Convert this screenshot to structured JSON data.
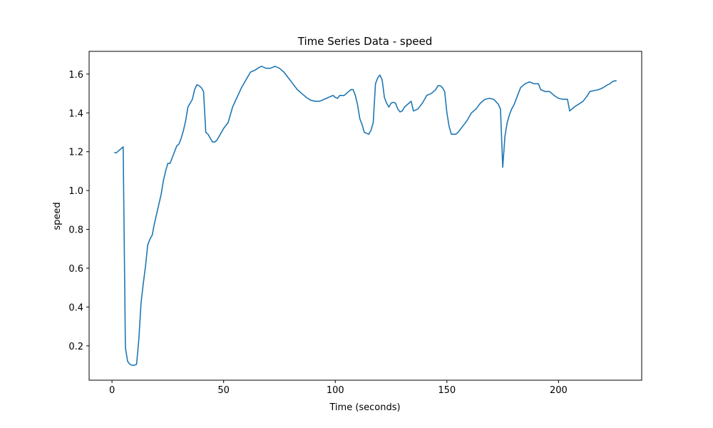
{
  "chart_data": {
    "type": "line",
    "title": "Time Series Data - speed",
    "x_label": "Time (seconds)",
    "y_label": "speed",
    "color": "#1f77b4",
    "x": [
      1,
      2,
      5,
      6,
      7,
      8,
      9,
      10,
      11,
      12,
      13,
      14,
      15,
      16,
      17,
      18,
      19,
      20,
      21,
      22,
      23,
      24,
      25,
      26,
      27,
      28,
      29,
      30,
      31,
      32,
      33,
      34,
      35,
      36,
      37,
      38,
      39,
      40,
      41,
      42,
      43,
      44,
      45,
      46,
      47,
      48,
      49,
      50,
      52,
      53,
      54,
      56,
      58,
      60,
      62,
      64,
      66,
      67,
      69,
      71,
      73,
      75,
      77,
      79,
      81,
      83,
      85,
      87,
      89,
      91,
      93,
      95,
      97,
      99,
      100,
      101,
      102,
      104,
      106,
      107,
      108,
      109,
      110,
      111,
      112,
      113,
      115,
      116,
      117,
      118,
      119,
      120,
      121,
      122,
      123,
      124,
      125,
      126,
      127,
      128,
      129,
      130,
      131,
      133,
      134,
      135,
      136,
      137,
      139,
      141,
      143,
      145,
      146,
      147,
      148,
      149,
      150,
      151,
      152,
      154,
      155,
      157,
      159,
      161,
      163,
      165,
      167,
      169,
      171,
      173,
      174,
      175,
      176,
      177,
      178,
      179,
      180,
      181,
      182,
      183,
      185,
      187,
      189,
      191,
      192,
      194,
      196,
      198,
      200,
      202,
      204,
      205,
      207,
      209,
      211,
      213,
      214,
      216,
      218,
      220,
      222,
      223,
      224,
      225,
      226
    ],
    "values": [
      1.195,
      1.195,
      1.225,
      0.19,
      0.12,
      0.105,
      0.1,
      0.1,
      0.105,
      0.23,
      0.42,
      0.52,
      0.61,
      0.72,
      0.75,
      0.77,
      0.83,
      0.88,
      0.93,
      0.98,
      1.05,
      1.1,
      1.14,
      1.14,
      1.17,
      1.2,
      1.23,
      1.24,
      1.27,
      1.31,
      1.36,
      1.43,
      1.45,
      1.47,
      1.52,
      1.545,
      1.54,
      1.53,
      1.51,
      1.3,
      1.29,
      1.27,
      1.25,
      1.25,
      1.26,
      1.28,
      1.3,
      1.32,
      1.35,
      1.39,
      1.43,
      1.48,
      1.53,
      1.57,
      1.61,
      1.62,
      1.635,
      1.64,
      1.63,
      1.63,
      1.64,
      1.63,
      1.61,
      1.58,
      1.55,
      1.52,
      1.5,
      1.48,
      1.465,
      1.46,
      1.46,
      1.47,
      1.48,
      1.49,
      1.48,
      1.475,
      1.49,
      1.49,
      1.51,
      1.52,
      1.52,
      1.49,
      1.44,
      1.37,
      1.34,
      1.3,
      1.29,
      1.31,
      1.35,
      1.55,
      1.58,
      1.595,
      1.57,
      1.48,
      1.45,
      1.43,
      1.45,
      1.455,
      1.45,
      1.42,
      1.405,
      1.41,
      1.43,
      1.45,
      1.46,
      1.41,
      1.415,
      1.42,
      1.45,
      1.49,
      1.5,
      1.52,
      1.54,
      1.54,
      1.53,
      1.51,
      1.4,
      1.33,
      1.29,
      1.29,
      1.3,
      1.33,
      1.36,
      1.4,
      1.42,
      1.45,
      1.47,
      1.475,
      1.47,
      1.445,
      1.42,
      1.12,
      1.28,
      1.35,
      1.39,
      1.42,
      1.44,
      1.47,
      1.5,
      1.53,
      1.55,
      1.56,
      1.55,
      1.55,
      1.52,
      1.51,
      1.51,
      1.49,
      1.475,
      1.47,
      1.47,
      1.41,
      1.43,
      1.445,
      1.46,
      1.49,
      1.51,
      1.515,
      1.52,
      1.53,
      1.545,
      1.55,
      1.56,
      1.565,
      1.565
    ],
    "xlim": [
      -10.25,
      237.25
    ],
    "ylim": [
      0.023,
      1.717
    ],
    "xticks": [
      0,
      50,
      100,
      150,
      200
    ],
    "yticks": [
      0.2,
      0.4,
      0.6,
      0.8,
      {
        "value": 1.0,
        "label": "1.0"
      },
      1.2,
      1.4,
      1.6
    ]
  }
}
